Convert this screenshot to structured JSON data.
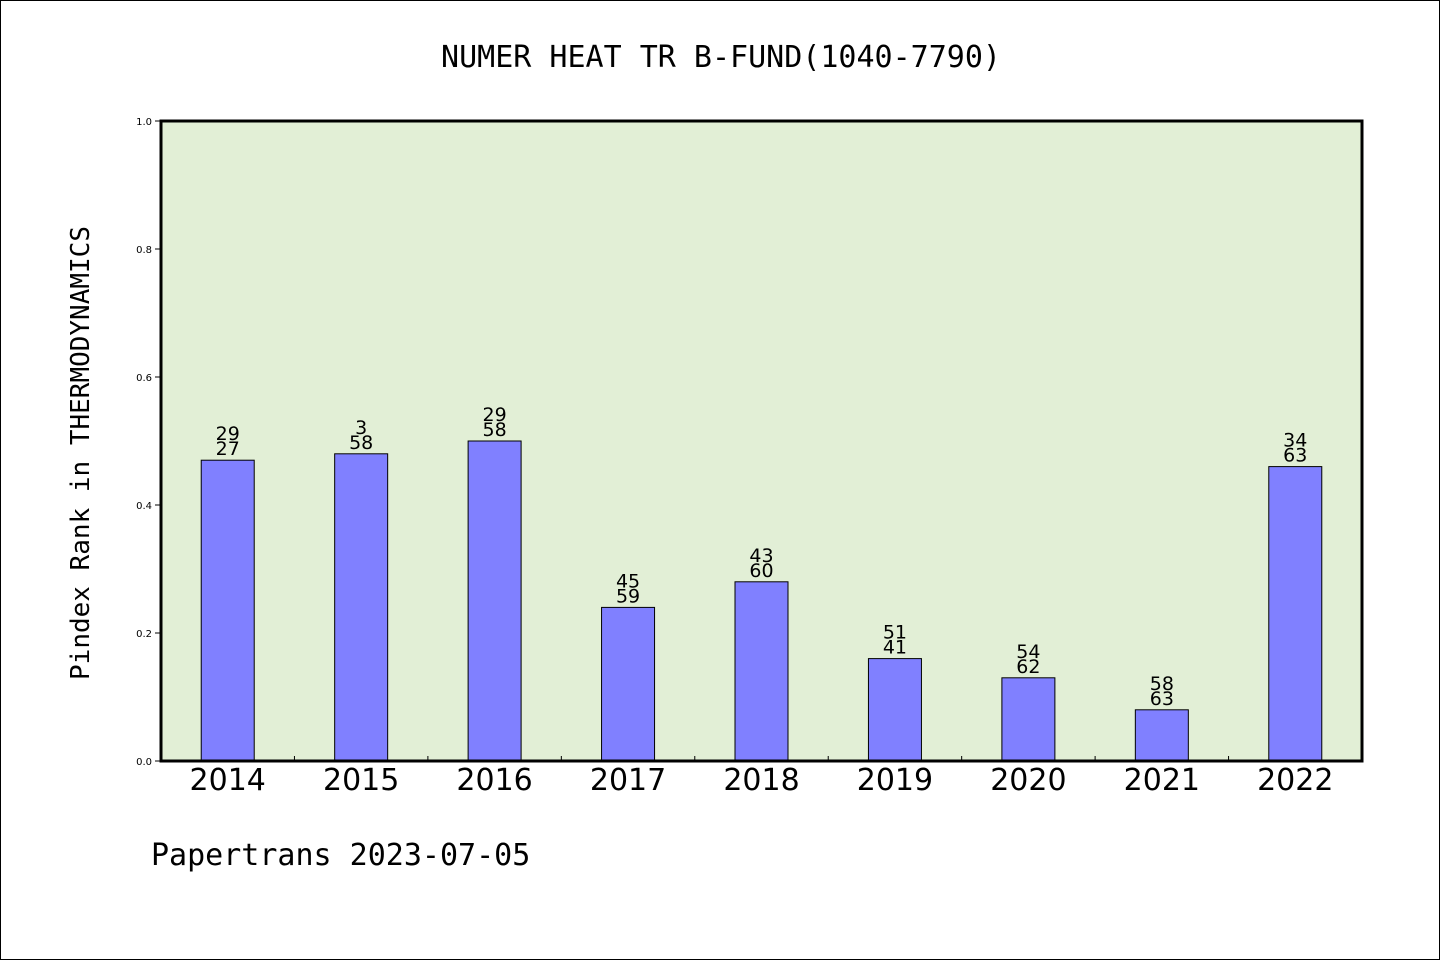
{
  "chart_data": {
    "type": "bar",
    "title": "NUMER HEAT TR B-FUND(1040-7790)",
    "ylabel": "Pindex Rank in THERMODYNAMICS",
    "xlabel": "",
    "footer": "Papertrans 2023-07-05",
    "categories": [
      "2014",
      "2015",
      "2016",
      "2017",
      "2018",
      "2019",
      "2020",
      "2021",
      "2022"
    ],
    "values": [
      0.47,
      0.48,
      0.5,
      0.24,
      0.28,
      0.16,
      0.13,
      0.08,
      0.46
    ],
    "bar_labels_top": [
      "29",
      "3",
      "29",
      "45",
      "43",
      "51",
      "54",
      "58",
      "34"
    ],
    "bar_labels_bottom": [
      "27",
      "58",
      "58",
      "59",
      "60",
      "41",
      "62",
      "63",
      "63"
    ],
    "ylim": [
      0,
      1.0
    ],
    "yticks": [
      "0.0",
      "0.2",
      "0.4",
      "0.6",
      "0.8",
      "1.0"
    ],
    "grid": false,
    "colors": {
      "bar": "#8080ff",
      "plot_background": "#e2efd6",
      "border": "#000000"
    }
  }
}
